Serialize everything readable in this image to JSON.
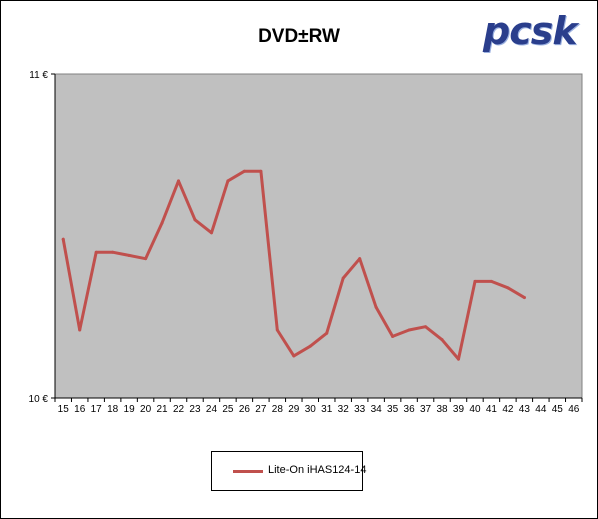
{
  "chart_data": {
    "type": "line",
    "title": "DVD±RW",
    "logo_text": "pcsk",
    "categories": [
      "15",
      "16",
      "17",
      "18",
      "19",
      "20",
      "21",
      "22",
      "23",
      "24",
      "25",
      "26",
      "27",
      "28",
      "29",
      "30",
      "31",
      "32",
      "33",
      "34",
      "35",
      "36",
      "37",
      "38",
      "39",
      "40",
      "41",
      "42",
      "43",
      "44",
      "45",
      "46"
    ],
    "series": [
      {
        "name": "Lite-On  iHAS124-14",
        "color": "#c0504d",
        "values": [
          10.49,
          10.21,
          10.45,
          10.45,
          10.44,
          10.43,
          10.54,
          10.67,
          10.55,
          10.51,
          10.67,
          10.7,
          10.7,
          10.21,
          10.13,
          10.16,
          10.2,
          10.37,
          10.43,
          10.28,
          10.19,
          10.21,
          10.22,
          10.18,
          10.12,
          10.36,
          10.36,
          10.34,
          10.31,
          null,
          null,
          null
        ]
      }
    ],
    "y_tick_labels": [
      "11 €",
      "10 €"
    ],
    "ylim": [
      10,
      11
    ],
    "plot_background": "#c0c0c0",
    "grid": false,
    "legend_position": "bottom"
  }
}
